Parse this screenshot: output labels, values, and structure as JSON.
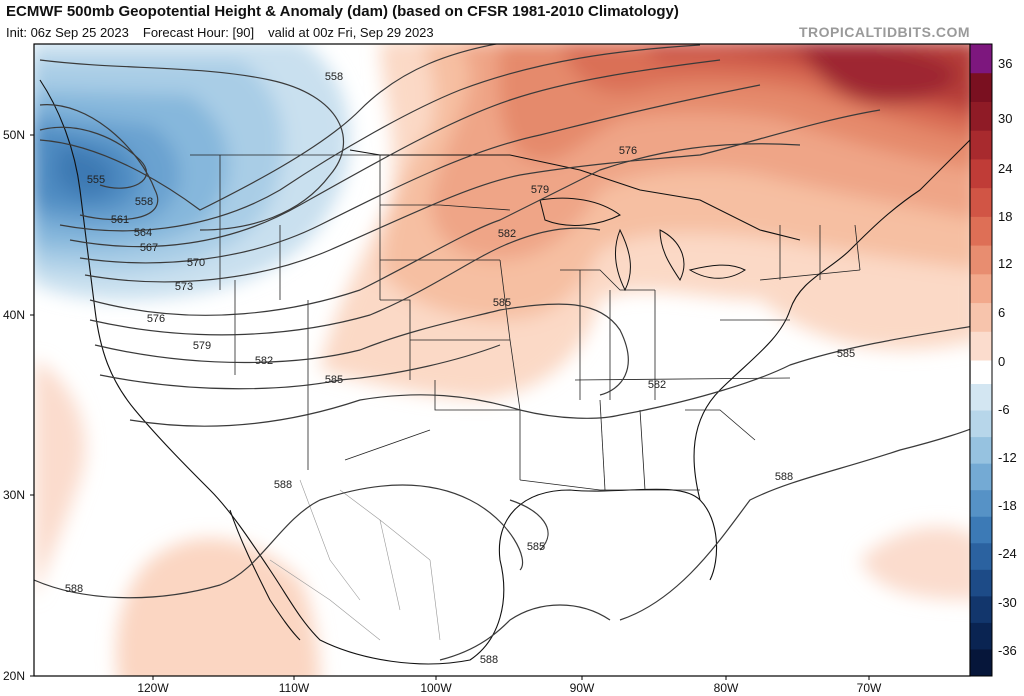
{
  "header": {
    "title": "ECMWF 500mb Geopotential Height & Anomaly (dam) (based on CFSR 1981-2010 Climatology)",
    "init": "Init: 06z Sep 25 2023",
    "forecast_hour": "Forecast Hour: [90]",
    "valid": "valid at 00z Fri, Sep 29 2023",
    "brand": "TROPICALTIDBITS.COM"
  },
  "axes": {
    "lat_labels": [
      "50N",
      "40N",
      "30N",
      "20N"
    ],
    "lon_labels": [
      "120W",
      "110W",
      "100W",
      "90W",
      "80W",
      "70W"
    ]
  },
  "colorbar": {
    "ticks": [
      "36",
      "30",
      "24",
      "18",
      "12",
      "6",
      "0",
      "-6",
      "-12",
      "-18",
      "-24",
      "-30",
      "-36"
    ],
    "colors": {
      "pos": [
        "#fbdccd",
        "#f7c4ac",
        "#f2a98c",
        "#e88d70",
        "#de6f56",
        "#d15545",
        "#c03c37",
        "#a82a2e",
        "#8f1b26",
        "#7a1020",
        "#7d177e"
      ],
      "neg": [
        "#d3e6f2",
        "#b7d6ea",
        "#96c2e0",
        "#74aad4",
        "#5692c6",
        "#3c7ab6",
        "#2b62a0",
        "#1d4b87",
        "#12366c",
        "#0a2452",
        "#06163a"
      ]
    }
  },
  "contour_labels": [
    "555",
    "558",
    "558",
    "561",
    "564",
    "567",
    "570",
    "573",
    "576",
    "579",
    "582",
    "585",
    "576",
    "579",
    "582",
    "585",
    "582",
    "585",
    "588",
    "588",
    "585",
    "588",
    "588"
  ]
}
